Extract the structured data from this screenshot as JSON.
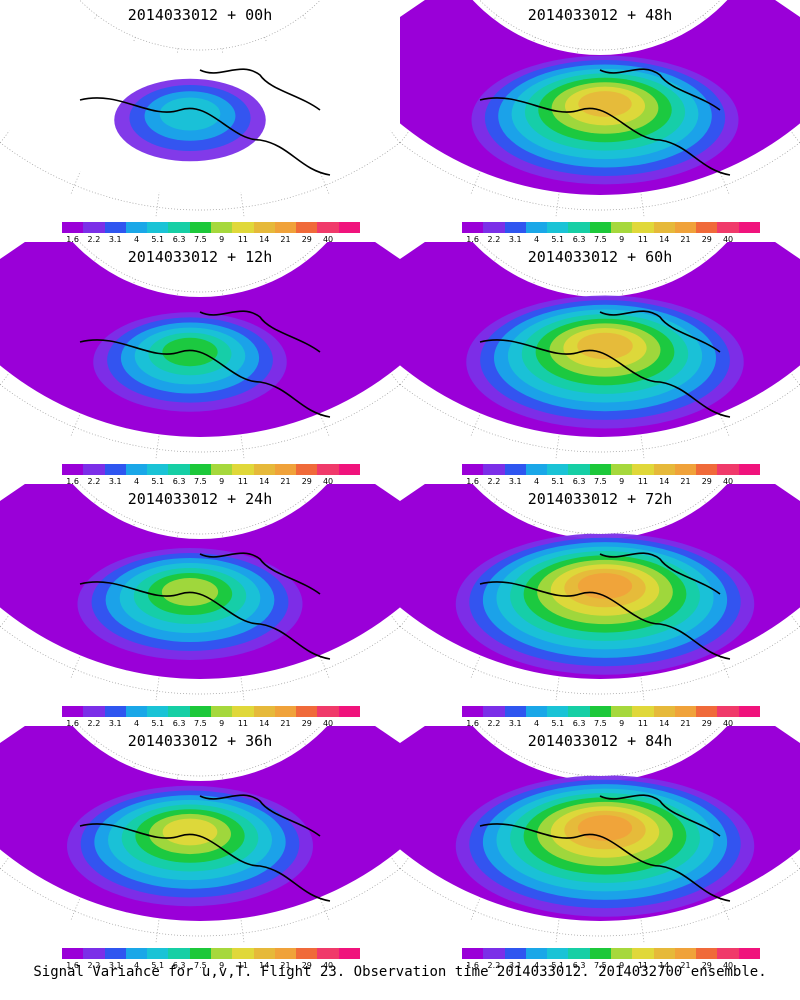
{
  "panels": [
    {
      "title": "2014033012 + 00h",
      "intensity": 0.15
    },
    {
      "title": "2014033012 + 48h",
      "intensity": 0.7
    },
    {
      "title": "2014033012 + 12h",
      "intensity": 0.35
    },
    {
      "title": "2014033012 + 60h",
      "intensity": 0.75
    },
    {
      "title": "2014033012 + 24h",
      "intensity": 0.5
    },
    {
      "title": "2014033012 + 72h",
      "intensity": 0.85
    },
    {
      "title": "2014033012 + 36h",
      "intensity": 0.6
    },
    {
      "title": "2014033012 + 84h",
      "intensity": 0.85
    }
  ],
  "colorbar": {
    "labels": [
      "1.6",
      "2.2",
      "3.1",
      "4",
      "5.1",
      "6.3",
      "7.5",
      "9",
      "11",
      "14",
      "21",
      "29",
      "40"
    ],
    "colors": [
      "#9a00d8",
      "#7b2fe8",
      "#2f56f0",
      "#1aa7e8",
      "#1ac3d6",
      "#16cfa5",
      "#1cc83a",
      "#a6d83c",
      "#e0d83a",
      "#e6b93a",
      "#f0a23a",
      "#f06a3a",
      "#f03a6a",
      "#f0137c"
    ]
  },
  "footer": "Signal Variance for u,v,T. Flight 23. Observation time 2014033012. 2014032700 ensemble."
}
